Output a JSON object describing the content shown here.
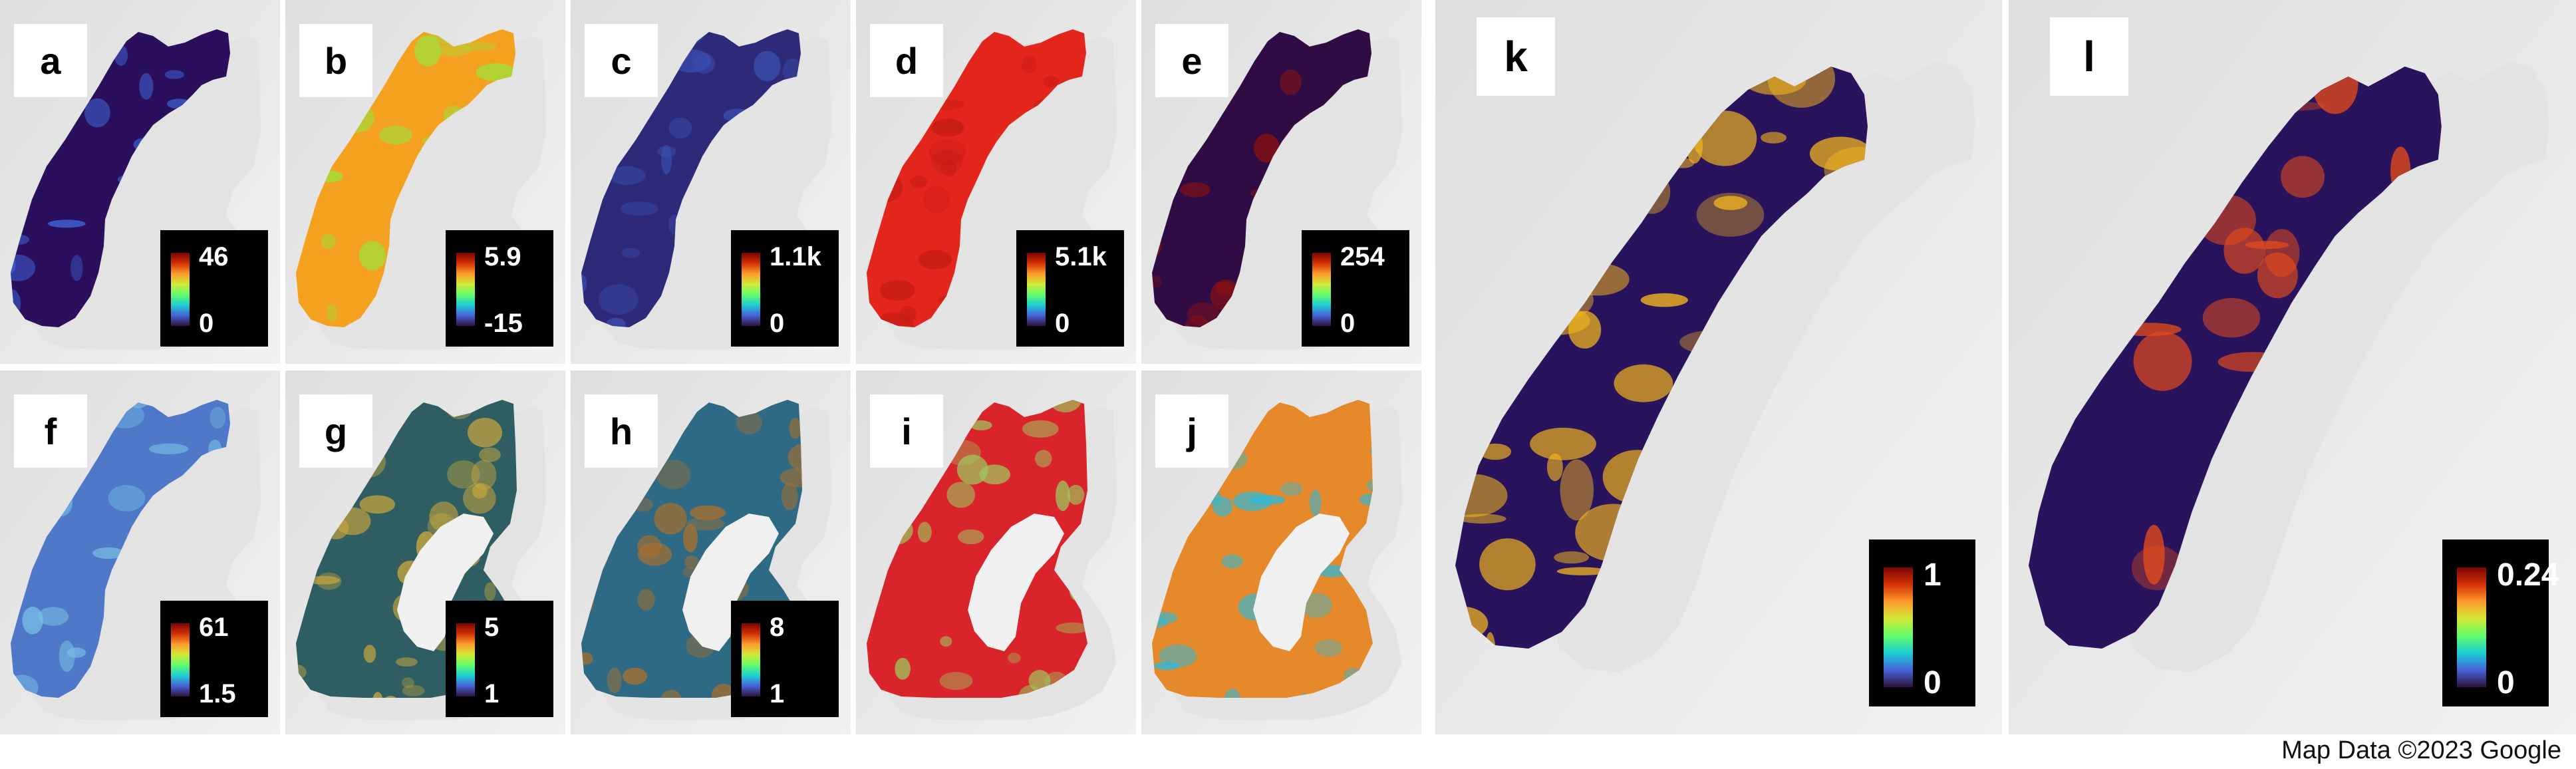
{
  "panels": [
    {
      "label": "a",
      "legend": {
        "max": "46",
        "min": "0"
      },
      "colors": {
        "base": "#2a0f5c",
        "accent": "#3f66d8"
      }
    },
    {
      "label": "b",
      "legend": {
        "max": "5.9",
        "min": "-15"
      },
      "colors": {
        "base": "#f4a11f",
        "accent": "#9be23c"
      }
    },
    {
      "label": "c",
      "legend": {
        "max": "1.1k",
        "min": "0"
      },
      "colors": {
        "base": "#2d2a7a",
        "accent": "#3b4fb0"
      }
    },
    {
      "label": "d",
      "legend": {
        "max": "5.1k",
        "min": "0"
      },
      "colors": {
        "base": "#e3261c",
        "accent": "#c41b14"
      }
    },
    {
      "label": "e",
      "legend": {
        "max": "254",
        "min": "0"
      },
      "colors": {
        "base": "#300c45",
        "accent": "#8a1111"
      }
    },
    {
      "label": "f",
      "legend": {
        "max": "61",
        "min": "1.5"
      },
      "colors": {
        "base": "#4f78c8",
        "accent": "#7ac3e6"
      }
    },
    {
      "label": "g",
      "legend": {
        "max": "5",
        "min": "1"
      },
      "colors": {
        "base": "#2f5e62",
        "accent": "#c8a63d"
      }
    },
    {
      "label": "h",
      "legend": {
        "max": "8",
        "min": "1"
      },
      "colors": {
        "base": "#2e6a84",
        "accent": "#a66f2e"
      }
    },
    {
      "label": "i",
      "legend": null,
      "colors": {
        "base": "#d9242b",
        "accent": "#9ec85e"
      }
    },
    {
      "label": "j",
      "legend": null,
      "colors": {
        "base": "#e5892a",
        "accent": "#2fb8d6"
      }
    },
    {
      "label": "k",
      "legend": {
        "max": "1",
        "min": "0"
      },
      "colors": {
        "base": "#28135c",
        "accent": "#f2b51d"
      }
    },
    {
      "label": "l",
      "legend": {
        "max": "0.24",
        "min": "0"
      },
      "colors": {
        "base": "#28135c",
        "accent": "#e34a1c"
      }
    }
  ],
  "colorbar_gradient": [
    "#30123b",
    "#4662d7",
    "#1bcfd4",
    "#62fc6b",
    "#d2e935",
    "#fe9b2d",
    "#d23105",
    "#7a0403"
  ],
  "credit": "Map Data ©2023 Google"
}
